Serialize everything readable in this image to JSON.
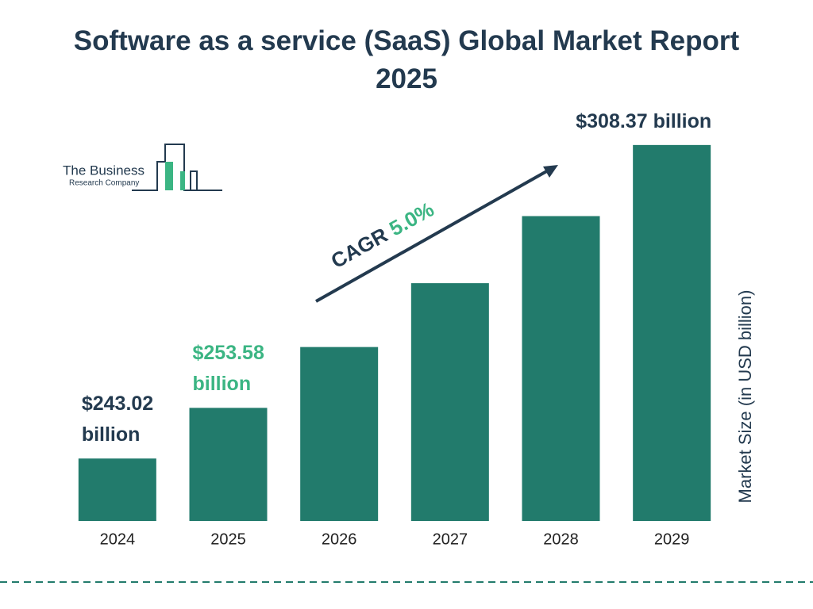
{
  "chart_data": {
    "type": "bar",
    "title": "Software as a service (SaaS) Global Market Report 2025",
    "brand": [
      "The Business",
      "Research Company"
    ],
    "categories": [
      "2024",
      "2025",
      "2026",
      "2027",
      "2028",
      "2029"
    ],
    "values": [
      243.02,
      253.58,
      266.26,
      279.57,
      293.55,
      308.37
    ],
    "value_labels": [
      "$243.02 billion",
      "$253.58 billion",
      null,
      null,
      null,
      "$308.37 billion"
    ],
    "color": "#227b6c",
    "ylim": [
      230,
      310
    ],
    "y_axis_label": "Market Size (in USD billion)",
    "annotation": {
      "label": "CAGR",
      "value": "5.0%"
    }
  }
}
